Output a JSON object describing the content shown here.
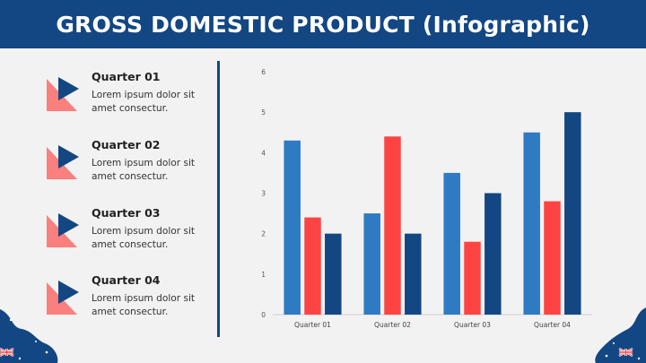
{
  "header": {
    "title": "GROSS DOMESTIC PRODUCT (Infographic)"
  },
  "quarters": [
    {
      "title": "Quarter 01",
      "description": "Lorem ipsum dolor sit amet consectur."
    },
    {
      "title": "Quarter 02",
      "description": "Lorem ipsum dolor sit amet consectur."
    },
    {
      "title": "Quarter 03",
      "description": "Lorem ipsum dolor sit amet consectur."
    },
    {
      "title": "Quarter 04",
      "description": "Lorem ipsum dolor sit amet consectur."
    }
  ],
  "icons": {
    "quarter_icon": "triangle-play-icon",
    "corner_flag": "australia-flag-icon"
  },
  "colors": {
    "header_bg": "#134783",
    "series": [
      "#2e7bc4",
      "#fe4443",
      "#134783"
    ],
    "icon_back": "#fa7f7d",
    "icon_front": "#134783"
  },
  "chart_data": {
    "type": "bar",
    "categories": [
      "Quarter 01",
      "Quarter 02",
      "Quarter 03",
      "Quarter 04"
    ],
    "series": [
      {
        "values": [
          4.3,
          2.5,
          3.5,
          4.5
        ]
      },
      {
        "values": [
          2.4,
          4.4,
          1.8,
          2.8
        ]
      },
      {
        "values": [
          2.0,
          2.0,
          3.0,
          5.0
        ]
      }
    ],
    "ylim": [
      0,
      6
    ],
    "yticks": [
      0,
      1,
      2,
      3,
      4,
      5,
      6
    ],
    "title": "",
    "xlabel": "",
    "ylabel": "",
    "grid": false,
    "legend": "none"
  }
}
